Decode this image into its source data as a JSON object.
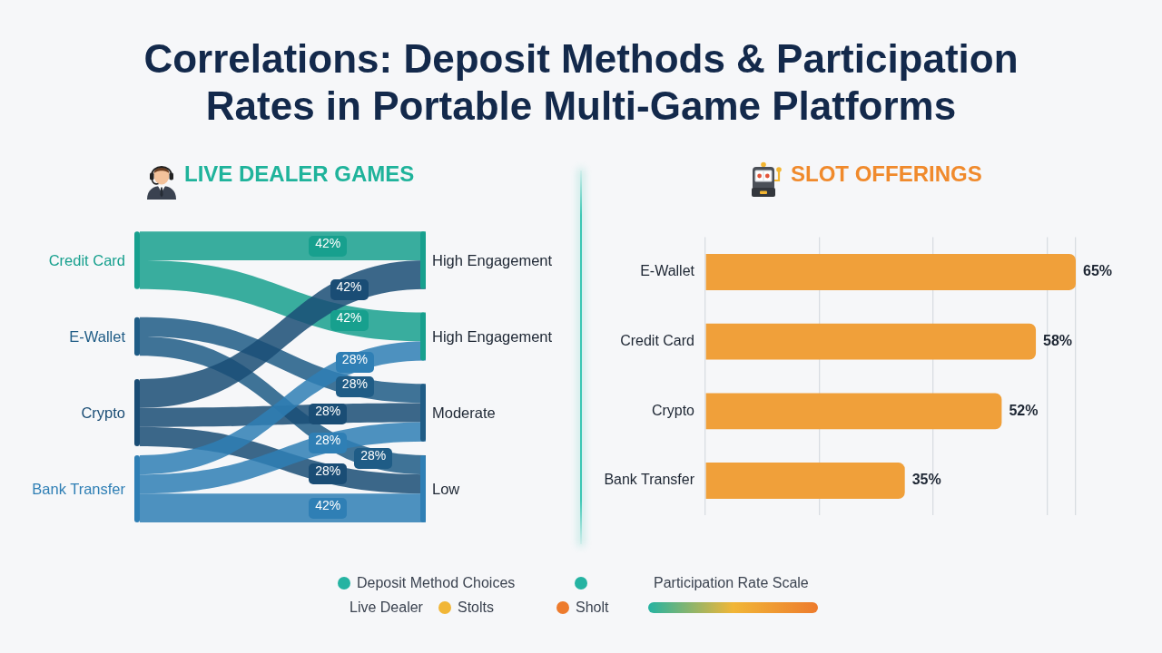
{
  "chart_data": [
    {
      "type": "other",
      "title": "Correlations: Deposit Methods & Participation Rates in Portable Multi-Game Platforms"
    },
    {
      "type": "other",
      "title": "LIVE DEALER GAMES",
      "categories": [
        "High Engagement",
        "High Engagement",
        "Moderate",
        "Low"
      ],
      "series": [
        {
          "name": "Credit Card",
          "color": "#17a08e",
          "values": [
            42,
            42,
            null,
            null
          ],
          "value_labels": [
            "42%",
            "42%",
            null,
            null
          ]
        },
        {
          "name": "E-Wallet",
          "color": "#1f5c86",
          "values": [
            null,
            null,
            28,
            28
          ],
          "value_labels": [
            null,
            null,
            "28%",
            "28%"
          ]
        },
        {
          "name": "Crypto",
          "color": "#1a4d75",
          "values": [
            42,
            null,
            28,
            28
          ],
          "value_labels": [
            "42%",
            null,
            "28%",
            "28%"
          ]
        },
        {
          "name": "Bank Transfer",
          "color": "#2f7fb5",
          "values": [
            null,
            28,
            28,
            42
          ],
          "value_labels": [
            null,
            "28%",
            "28%",
            "42%"
          ]
        }
      ]
    },
    {
      "type": "bar",
      "orientation": "horizontal",
      "title": "SLOT OFFERINGS",
      "categories": [
        "E-Wallet",
        "Credit Card",
        "Crypto",
        "Bank Transfer"
      ],
      "values": [
        65,
        58,
        52,
        35
      ],
      "value_labels": [
        "65%",
        "58%",
        "52%",
        "35%"
      ],
      "color": "#f0a03a",
      "grid": "x",
      "tick_labels": "y"
    },
    {
      "type": "other",
      "series": [
        {
          "name": "Deposit Method Choices",
          "color": "#25b3a2"
        },
        {
          "name": "Stolts",
          "color": "#f1b637"
        },
        {
          "name": "Sholt",
          "color": "#ed7b2d"
        }
      ],
      "annotations": [
        "Live Dealer",
        "Participation Rate Scale"
      ]
    }
  ]
}
